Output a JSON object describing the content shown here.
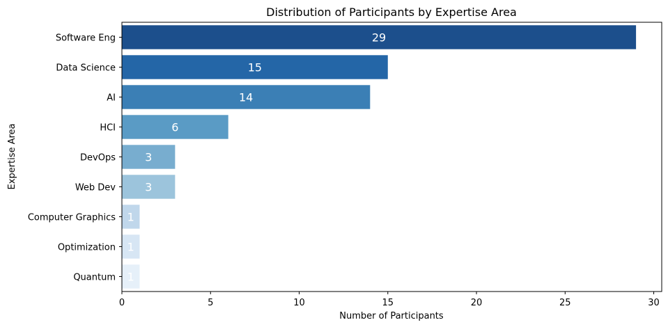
{
  "chart_data": {
    "type": "bar",
    "orientation": "horizontal",
    "title": "Distribution of Participants by Expertise Area",
    "xlabel": "Number of Participants",
    "ylabel": "Expertise Area",
    "categories": [
      "Software Eng",
      "Data Science",
      "AI",
      "HCI",
      "DevOps",
      "Web Dev",
      "Computer Graphics",
      "Optimization",
      "Quantum"
    ],
    "values": [
      29,
      15,
      14,
      6,
      3,
      3,
      1,
      1,
      1
    ],
    "data_labels": [
      "29",
      "15",
      "14",
      "6",
      "3",
      "3",
      "1",
      "1",
      "1"
    ],
    "colors": [
      "#1c4f8c",
      "#2466a7",
      "#3b7fb5",
      "#5a9bc5",
      "#78adcf",
      "#9cc4dc",
      "#c0d7eb",
      "#d7e6f4",
      "#e6f0f9"
    ],
    "xlim": [
      0,
      30.45
    ],
    "xticks": [
      0,
      5,
      10,
      15,
      20,
      25,
      30
    ],
    "xtick_labels": [
      "0",
      "5",
      "10",
      "15",
      "20",
      "25",
      "30"
    ],
    "grid": false,
    "legend": "none"
  }
}
